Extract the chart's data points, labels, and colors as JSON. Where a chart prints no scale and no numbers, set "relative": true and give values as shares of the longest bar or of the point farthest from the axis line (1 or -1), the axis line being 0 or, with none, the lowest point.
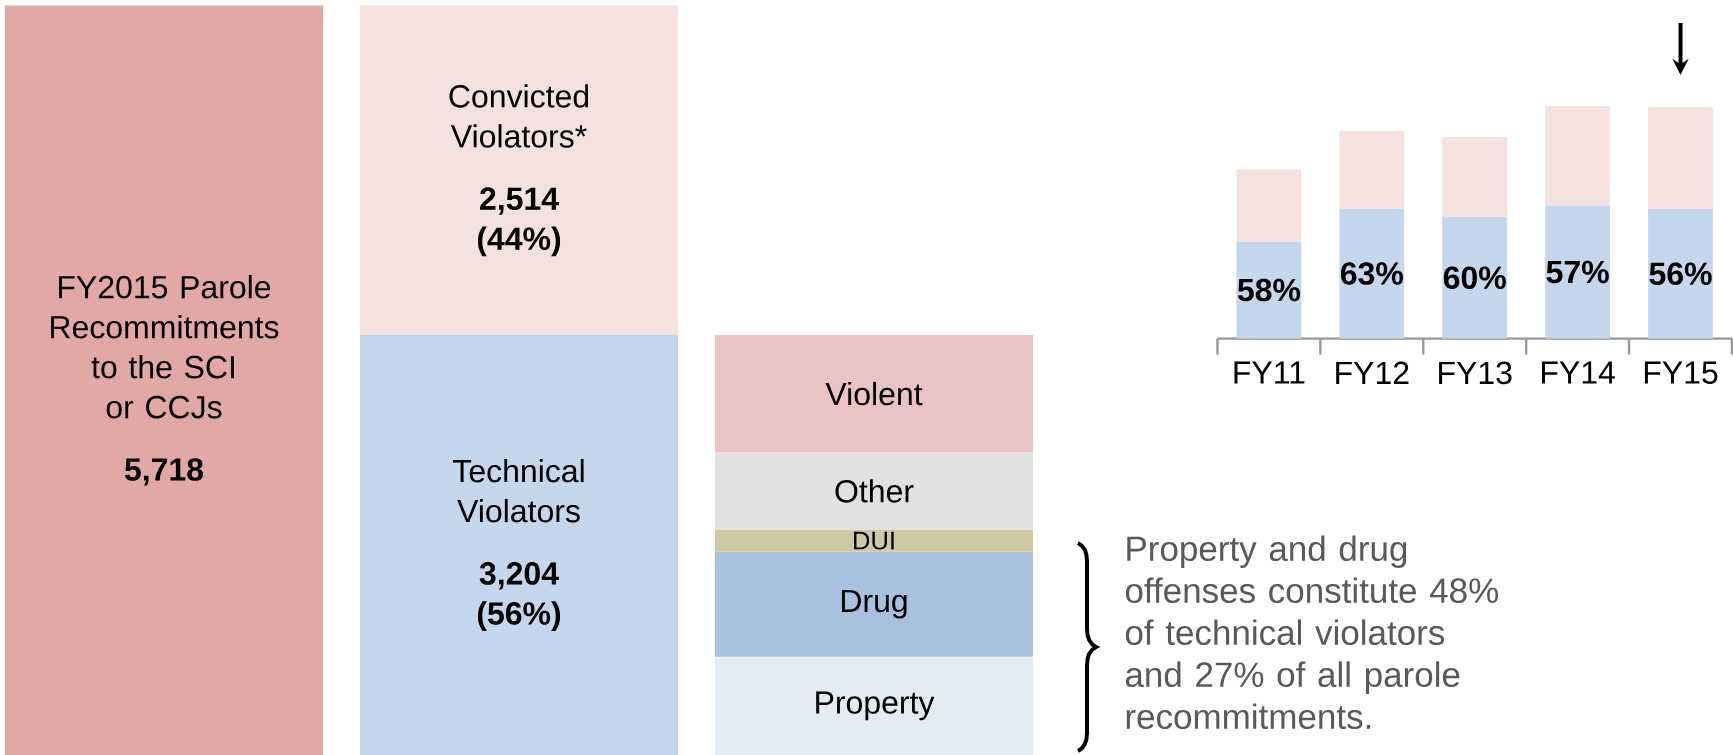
{
  "chart_data": [
    {
      "type": "bar",
      "stacked": true,
      "categories": [
        null,
        null,
        null
      ],
      "series": [
        {
          "name": "FY2015 Parole Recommitments to the SCI or CCJs",
          "color": "#e2a8a6",
          "values": [
            5718,
            null,
            null
          ],
          "value_labels": [
            "5,718",
            null,
            null
          ]
        },
        {
          "name": "Technical Violators",
          "color": "#c5d7ec",
          "values": [
            null,
            3204,
            null
          ],
          "value_labels": [
            null,
            "3,204 (56%)",
            null
          ]
        },
        {
          "name": "Convicted Violators*",
          "color": "#f5e1e0",
          "values": [
            null,
            2514,
            null
          ],
          "value_labels": [
            null,
            "2,514 (44%)",
            null
          ]
        },
        {
          "name": "Property",
          "color": "#e4ebf5",
          "values": [
            null,
            null,
            750
          ]
        },
        {
          "name": "Drug",
          "color": "#a7c1df",
          "values": [
            null,
            null,
            800
          ]
        },
        {
          "name": "DUI",
          "color": "#d1c8a4",
          "values": [
            null,
            null,
            170
          ]
        },
        {
          "name": "Other",
          "color": "#e2e2e2",
          "values": [
            null,
            null,
            590
          ]
        },
        {
          "name": "Violent",
          "color": "#ecc3c3",
          "values": [
            null,
            null,
            894
          ]
        }
      ],
      "annotations": [
        "Property and drug offenses constitute 48% of technical violators and 27% of all parole recommitments."
      ]
    },
    {
      "type": "bar",
      "stacked": true,
      "relative": true,
      "categories": [
        "FY11",
        "FY12",
        "FY13",
        "FY14",
        "FY15"
      ],
      "series": [
        {
          "color": "#c5d7ec",
          "values": [
            0.417,
            0.559,
            0.523,
            0.572,
            0.557
          ]
        },
        {
          "color": "#f5e1e0",
          "values": [
            0.31,
            0.333,
            0.344,
            0.428,
            0.439
          ]
        }
      ],
      "annotations": [
        {
          "text": "58%",
          "x": "FY11",
          "y": 0.417
        },
        {
          "text": "63%",
          "x": "FY12",
          "y": 0.559
        },
        {
          "text": "60%",
          "x": "FY13",
          "y": 0.523
        },
        {
          "text": "57%",
          "x": "FY14",
          "y": 0.572
        },
        {
          "text": "56%",
          "x": "FY15",
          "y": 0.557
        }
      ]
    }
  ]
}
